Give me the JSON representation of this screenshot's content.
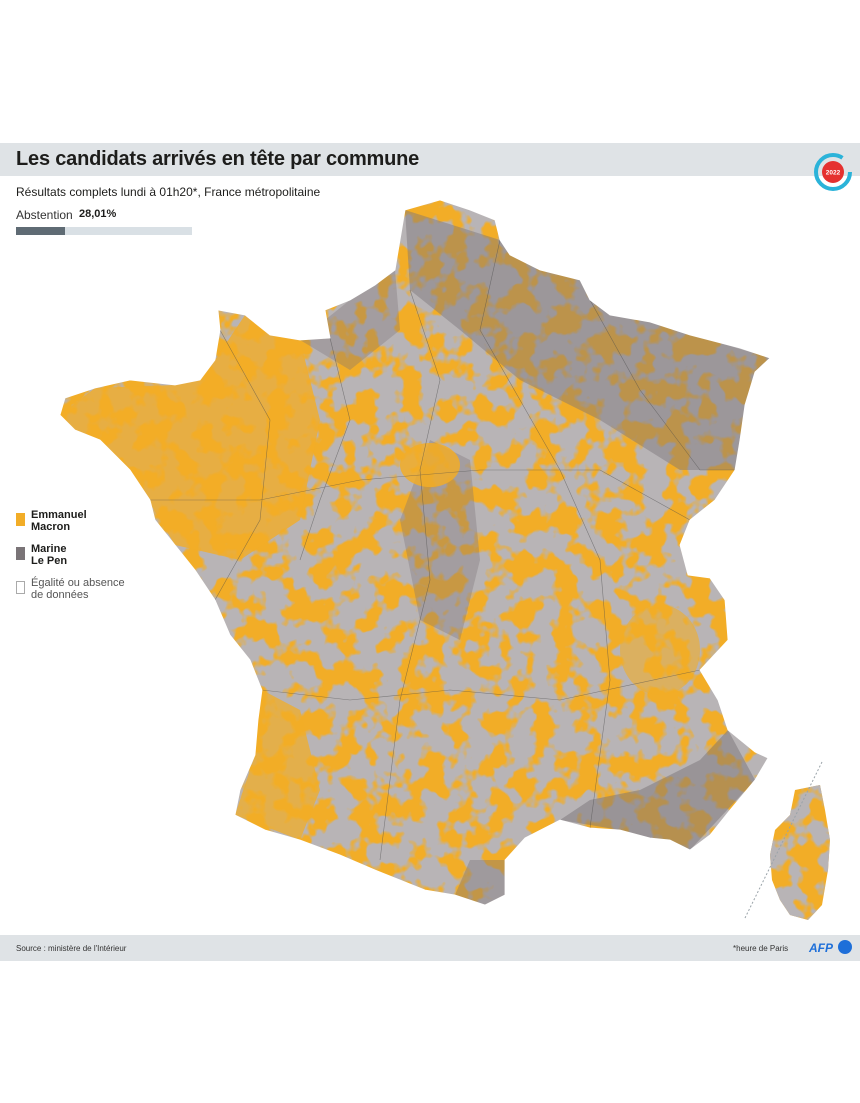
{
  "header": {
    "title": "Les candidats arrivés en tête par commune",
    "subtitle": "Résultats complets lundi à 01h20*, France métropolitaine",
    "badge_year": "2022"
  },
  "abstention": {
    "label": "Abstention",
    "value": "28,01%",
    "fraction": 0.2801
  },
  "legend": {
    "items": [
      {
        "line1": "Emmanuel",
        "line2": "Macron",
        "color": "#f2ad27"
      },
      {
        "line1": "Marine",
        "line2": "Le Pen",
        "color": "#7a7477"
      },
      {
        "line1": "Égalité ou absence",
        "line2": "de données",
        "color": "#ffffff"
      }
    ]
  },
  "colors": {
    "macron": "#f2ad27",
    "lepen": "#7a7477",
    "border": "#4a4a4a",
    "bar": "#dfe3e6",
    "accent": "#1e6fd9",
    "badge_red": "#e5312f",
    "badge_ring": "#2bb3d9"
  },
  "footer": {
    "source": "Source : ministère de l'Intérieur",
    "footnote": "*heure de Paris",
    "brand": "AFP"
  }
}
